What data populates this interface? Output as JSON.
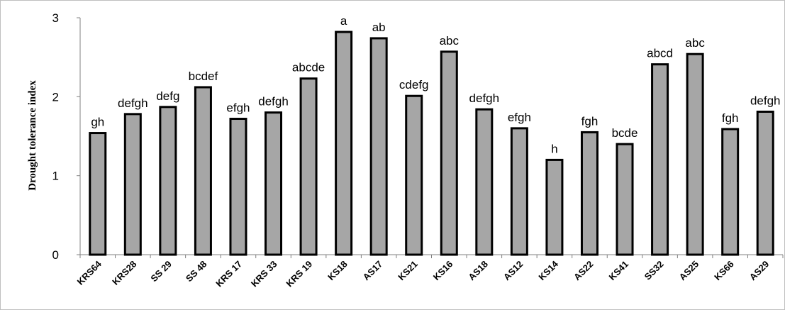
{
  "chart_data": {
    "type": "bar",
    "ylabel": "Drought tolerance index",
    "xlabel": "",
    "ylim": [
      0,
      3
    ],
    "yticks": [
      0,
      1,
      2,
      3
    ],
    "grid": false,
    "legend": "none",
    "bar_color": "#a6a6a6",
    "bar_edge_color": "#000000",
    "categories": [
      "KRS64",
      "KRS28",
      "SS 29",
      "SS 48",
      "KRS 17",
      "KRS 33",
      "KRS 19",
      "KS18",
      "AS17",
      "KS21",
      "KS16",
      "AS18",
      "AS12",
      "KS14",
      "AS22",
      "KS41",
      "SS32",
      "AS25",
      "KS66",
      "AS29"
    ],
    "values": [
      1.54,
      1.78,
      1.87,
      2.12,
      1.72,
      1.8,
      2.23,
      2.82,
      2.74,
      2.01,
      2.57,
      1.84,
      1.6,
      1.2,
      1.55,
      1.4,
      2.41,
      2.54,
      1.59,
      1.81
    ],
    "labels": [
      "gh",
      "defgh",
      "defg",
      "bcdef",
      "efgh",
      "defgh",
      "abcde",
      "a",
      "ab",
      "cdefg",
      "abc",
      "defgh",
      "efgh",
      "h",
      "fgh",
      "bcde",
      "abcd",
      "abc",
      "fgh",
      "defgh"
    ]
  }
}
